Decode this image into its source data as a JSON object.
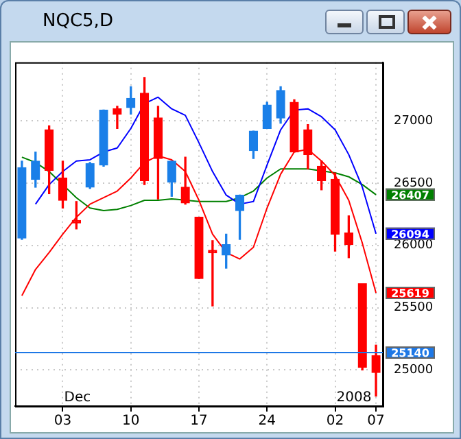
{
  "chart_data": {
    "type": "candlestick",
    "title": "NQC5,D",
    "categories": [
      null,
      null,
      null,
      "03",
      null,
      null,
      null,
      null,
      "10",
      null,
      null,
      null,
      null,
      "17",
      null,
      null,
      null,
      null,
      "24",
      null,
      null,
      null,
      null,
      "02",
      null,
      null,
      "07"
    ],
    "ohlc": [
      [
        26058,
        26677,
        26048,
        26624
      ],
      [
        26530,
        26750,
        26467,
        26677
      ],
      [
        26928,
        26960,
        26415,
        26603
      ],
      [
        26541,
        26677,
        26300,
        26362
      ],
      [
        26200,
        26352,
        26132,
        26180
      ],
      [
        26467,
        26666,
        26457,
        26656
      ],
      [
        26645,
        27086,
        26635,
        27086
      ],
      [
        27096,
        27117,
        26939,
        27054
      ],
      [
        27107,
        27274,
        27054,
        27180
      ],
      [
        27222,
        27348,
        26488,
        26520
      ],
      [
        27023,
        27117,
        26373,
        26698
      ],
      [
        26509,
        26677,
        26394,
        26677
      ],
      [
        26467,
        26708,
        26331,
        26341
      ],
      [
        26226,
        26226,
        25734,
        25734
      ],
      [
        25960,
        26038,
        25514,
        25940
      ],
      [
        25922,
        26090,
        25817,
        26006
      ],
      [
        26279,
        26404,
        26048,
        26404
      ],
      [
        26761,
        26918,
        26698,
        26918
      ],
      [
        26939,
        27148,
        26939,
        27127
      ],
      [
        27023,
        27274,
        26981,
        27243
      ],
      [
        27148,
        27169,
        26750,
        26750
      ],
      [
        26928,
        26970,
        26614,
        26729
      ],
      [
        26635,
        26677,
        26446,
        26520
      ],
      [
        26530,
        26582,
        25954,
        26090
      ],
      [
        26100,
        26237,
        25901,
        26006
      ],
      [
        25692,
        25692,
        25000,
        25021
      ],
      [
        25115,
        25199,
        24790,
        24979
      ]
    ],
    "colors": [
      "#1a7fe8",
      "#1a7fe8",
      "#ff0000",
      "#ff0000",
      "#ff0000",
      "#1a7fe8",
      "#1a7fe8",
      "#ff0000",
      "#1a7fe8",
      "#ff0000",
      "#ff0000",
      "#1a7fe8",
      "#ff0000",
      "#ff0000",
      "#ff0000",
      "#1a7fe8",
      "#1a7fe8",
      "#1a7fe8",
      "#1a7fe8",
      "#1a7fe8",
      "#ff0000",
      "#ff0000",
      "#ff0000",
      "#ff0000",
      "#ff0000",
      "#ff0000",
      "#ff0000"
    ],
    "series": [
      {
        "type": "line",
        "color": "#0000ff",
        "values": [
          null,
          26331,
          26488,
          26593,
          26677,
          26687,
          26750,
          26782,
          26939,
          27138,
          27190,
          27096,
          27044,
          26824,
          26593,
          26404,
          26331,
          26352,
          26645,
          26928,
          27086,
          27096,
          27033,
          26928,
          26729,
          26467,
          26094
        ]
      },
      {
        "type": "line",
        "color": "#ff0000",
        "values": [
          25597,
          25807,
          25943,
          26090,
          26226,
          26331,
          26383,
          26436,
          26541,
          26666,
          26719,
          26687,
          26593,
          26362,
          26090,
          25943,
          25891,
          25985,
          26300,
          26572,
          26750,
          26771,
          26677,
          26562,
          26362,
          26017,
          25619
        ]
      },
      {
        "type": "line",
        "color": "#008000",
        "values": [
          26708,
          26666,
          26593,
          26488,
          26383,
          26300,
          26279,
          26289,
          26320,
          26362,
          26362,
          26373,
          null,
          26352,
          26352,
          26352,
          26383,
          26436,
          26541,
          26614,
          26614,
          26614,
          null,
          26582,
          26551,
          26488,
          26407
        ]
      }
    ],
    "ylim": [
      24710,
      27470
    ],
    "yticks": [
      25000,
      25500,
      26000,
      26500,
      27000
    ],
    "grid": true,
    "ref_lines": [
      {
        "axis": "y",
        "value": 25140,
        "label": "25140",
        "color": "#1e78e6"
      }
    ],
    "annotations": [
      "Dec",
      "2008",
      {
        "text": "26407",
        "x": "07",
        "y": 26407
      },
      {
        "text": "26094",
        "x": "07",
        "y": 26094
      },
      {
        "text": "25619",
        "x": "07",
        "y": 25619
      }
    ]
  }
}
